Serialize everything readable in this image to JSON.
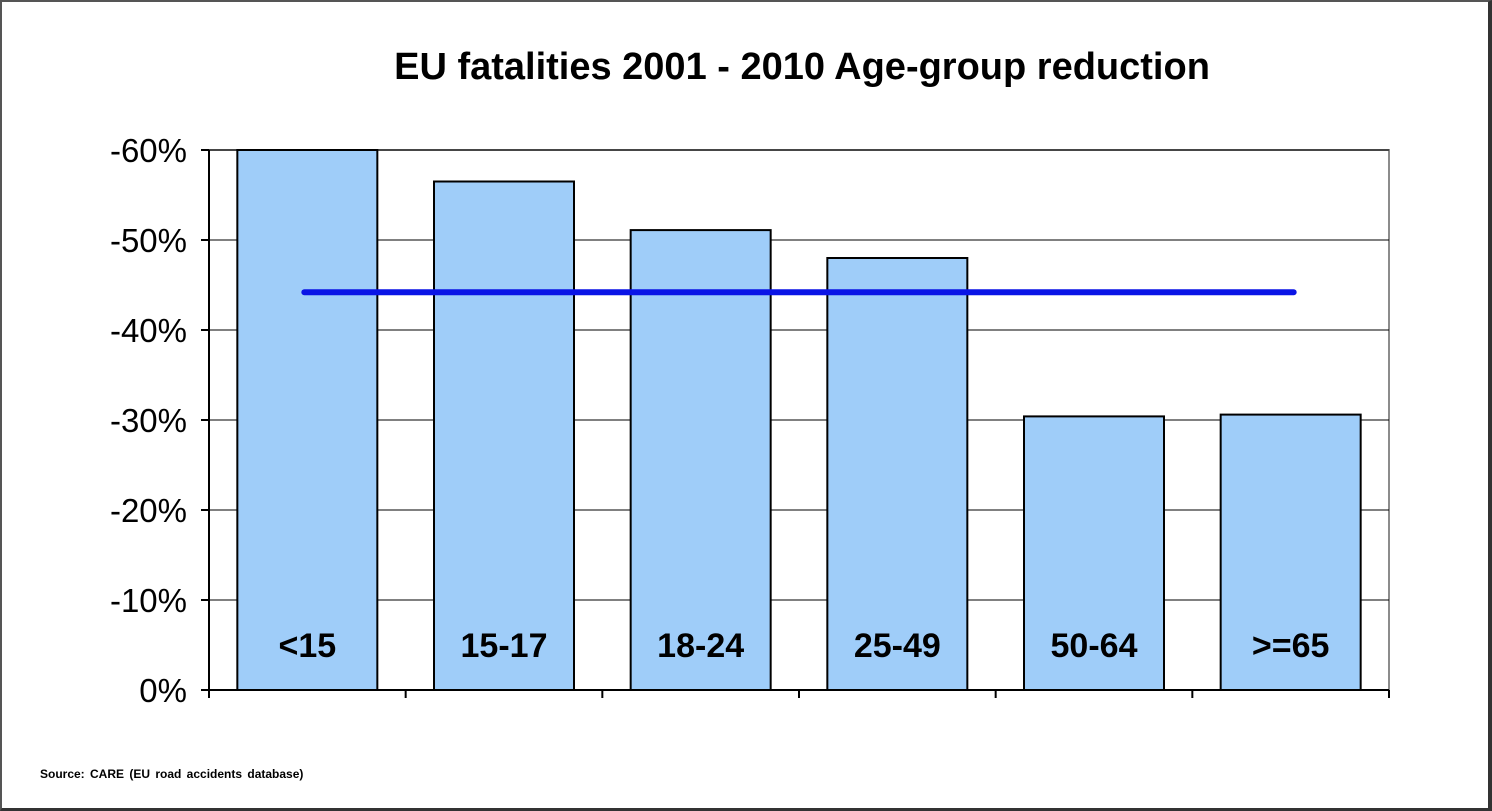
{
  "colors": {
    "bar_fill": "#9fcdf9",
    "bar_stroke": "#000000",
    "average_line": "#0a14e6",
    "gridline": "#000000",
    "plot_frame": "#8c8c8c"
  },
  "source_note": "Source: CARE (EU road accidents database)",
  "chart_data": {
    "type": "bar",
    "title": "EU fatalities 2001 - 2010 Age-group reduction",
    "xlabel": "",
    "ylabel": "",
    "categories": [
      "<15",
      "15-17",
      "18-24",
      "25-49",
      "50-64",
      ">=65"
    ],
    "series": [
      {
        "values": [
          -60,
          -56.5,
          -51.1,
          -48,
          -30.4,
          -30.6
        ]
      }
    ],
    "average_line": -44.2,
    "ylim": [
      0,
      -60
    ],
    "y_ticks": [
      0,
      -10,
      -20,
      -30,
      -40,
      -50,
      -60
    ],
    "y_tick_labels": [
      "0%",
      "-10%",
      "-20%",
      "-30%",
      "-40%",
      "-50%",
      "-60%"
    ],
    "category_labels_position": "inside bar bottom",
    "grid": true,
    "legend": "none"
  }
}
